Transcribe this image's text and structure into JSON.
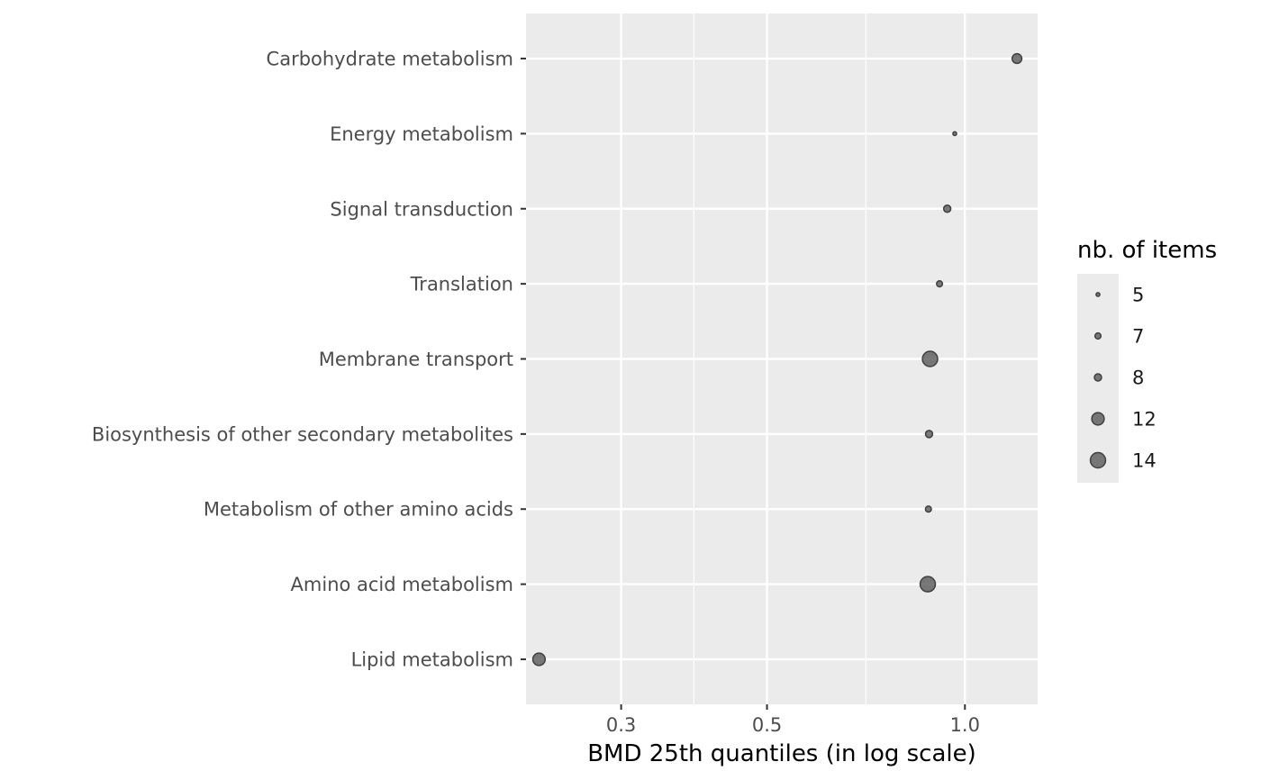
{
  "chart_data": {
    "type": "scatter",
    "xlabel": "BMD 25th quantiles (in log scale)",
    "ylabel": "",
    "xscale": "log",
    "xlim": [
      0.215,
      1.29
    ],
    "x_ticks": [
      0.3,
      0.5,
      1.0
    ],
    "x_tick_labels": [
      "0.3",
      "0.5",
      "1.0"
    ],
    "x_minor_ticks": [
      0.387,
      0.707
    ],
    "grid": true,
    "background": "#ebebeb",
    "point_color": "#595959",
    "categories": [
      "Carbohydrate metabolism",
      "Energy metabolism",
      "Signal transduction",
      "Translation",
      "Membrane transport",
      "Biosynthesis of other secondary metabolites",
      "Metabolism of other amino acids",
      "Amino acid metabolism",
      "Lipid metabolism"
    ],
    "points": [
      {
        "category": "Carbohydrate metabolism",
        "x": 1.2,
        "size": 10
      },
      {
        "category": "Energy metabolism",
        "x": 0.965,
        "size": 5
      },
      {
        "category": "Signal transduction",
        "x": 0.94,
        "size": 8
      },
      {
        "category": "Translation",
        "x": 0.915,
        "size": 7
      },
      {
        "category": "Membrane transport",
        "x": 0.885,
        "size": 14
      },
      {
        "category": "Biosynthesis of other secondary metabolites",
        "x": 0.882,
        "size": 8
      },
      {
        "category": "Metabolism of other amino acids",
        "x": 0.88,
        "size": 7
      },
      {
        "category": "Amino acid metabolism",
        "x": 0.878,
        "size": 14
      },
      {
        "category": "Lipid metabolism",
        "x": 0.225,
        "size": 12
      }
    ],
    "legend": {
      "title": "nb. of items",
      "position": "right",
      "entries": [
        {
          "label": "5",
          "size": 5
        },
        {
          "label": "7",
          "size": 7
        },
        {
          "label": "8",
          "size": 8
        },
        {
          "label": "12",
          "size": 12
        },
        {
          "label": "14",
          "size": 14
        }
      ]
    }
  }
}
